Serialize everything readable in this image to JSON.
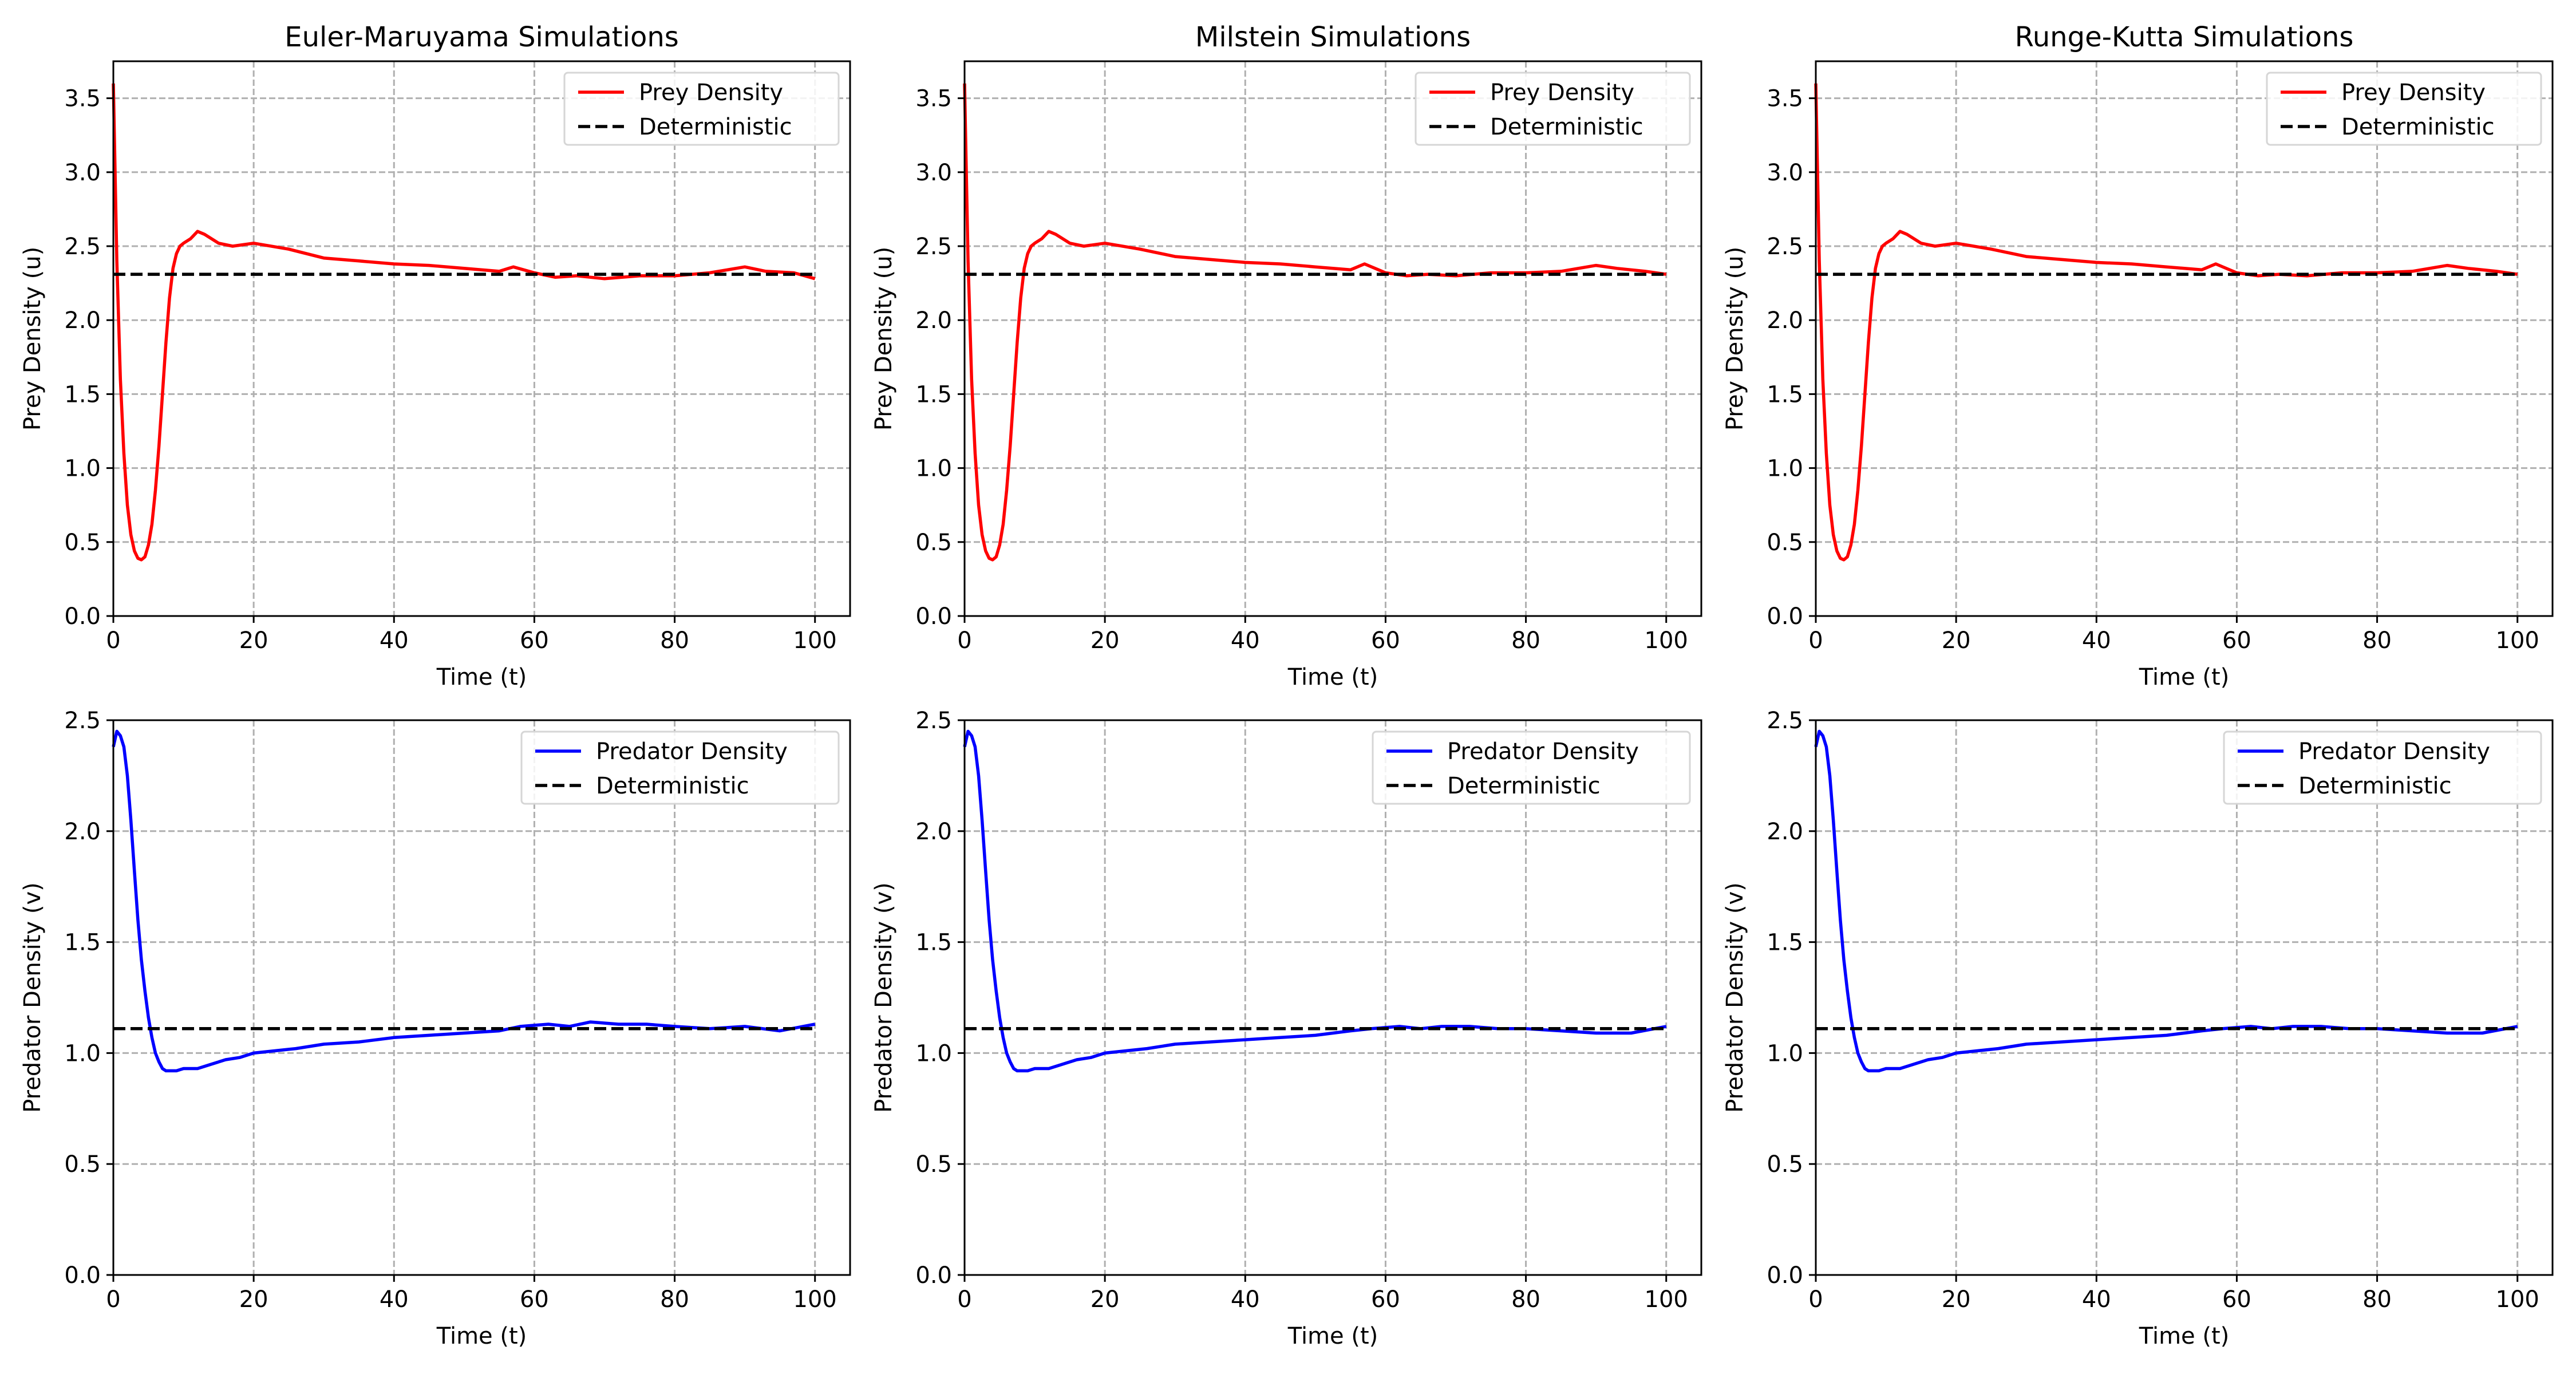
{
  "chart_data": [
    {
      "type": "line",
      "title": "Euler-Maruyama Simulations",
      "xlabel": "Time (t)",
      "ylabel": "Prey Density (u)",
      "xlim": [
        0,
        105
      ],
      "ylim": [
        0,
        3.75
      ],
      "xticks": [
        0,
        20,
        40,
        60,
        80,
        100
      ],
      "yticks": [
        0.0,
        0.5,
        1.0,
        1.5,
        2.0,
        2.5,
        3.0,
        3.5
      ],
      "xtick_labels": [
        "0",
        "20",
        "40",
        "60",
        "80",
        "100"
      ],
      "ytick_labels": [
        "0.0",
        "0.5",
        "1.0",
        "1.5",
        "2.0",
        "2.5",
        "3.0",
        "3.5"
      ],
      "grid": true,
      "legend": "upper-right",
      "series": [
        {
          "name": "Prey Density",
          "color": "#ff0000",
          "style": "solid",
          "x": [
            0,
            0.5,
            1,
            1.5,
            2,
            2.5,
            3,
            3.5,
            4,
            4.5,
            5,
            5.5,
            6,
            6.5,
            7,
            7.5,
            8,
            8.5,
            9,
            9.5,
            10,
            11,
            12,
            13,
            14,
            15,
            17,
            20,
            25,
            30,
            35,
            40,
            45,
            50,
            55,
            57,
            60,
            63,
            66,
            70,
            75,
            80,
            85,
            90,
            93,
            97,
            100
          ],
          "y": [
            3.6,
            2.4,
            1.6,
            1.1,
            0.75,
            0.55,
            0.44,
            0.39,
            0.38,
            0.4,
            0.48,
            0.62,
            0.85,
            1.15,
            1.5,
            1.85,
            2.15,
            2.35,
            2.45,
            2.5,
            2.52,
            2.55,
            2.6,
            2.58,
            2.55,
            2.52,
            2.5,
            2.52,
            2.48,
            2.42,
            2.4,
            2.38,
            2.37,
            2.35,
            2.33,
            2.36,
            2.32,
            2.29,
            2.3,
            2.28,
            2.3,
            2.3,
            2.32,
            2.36,
            2.33,
            2.32,
            2.28
          ]
        },
        {
          "name": "Deterministic",
          "color": "#000000",
          "style": "dashed",
          "x": [
            0,
            100
          ],
          "y": [
            2.31,
            2.31
          ]
        }
      ]
    },
    {
      "type": "line",
      "title": "Milstein Simulations",
      "xlabel": "Time (t)",
      "ylabel": "Prey Density (u)",
      "xlim": [
        0,
        105
      ],
      "ylim": [
        0,
        3.75
      ],
      "xticks": [
        0,
        20,
        40,
        60,
        80,
        100
      ],
      "yticks": [
        0.0,
        0.5,
        1.0,
        1.5,
        2.0,
        2.5,
        3.0,
        3.5
      ],
      "xtick_labels": [
        "0",
        "20",
        "40",
        "60",
        "80",
        "100"
      ],
      "ytick_labels": [
        "0.0",
        "0.5",
        "1.0",
        "1.5",
        "2.0",
        "2.5",
        "3.0",
        "3.5"
      ],
      "grid": true,
      "legend": "upper-right",
      "series": [
        {
          "name": "Prey Density",
          "color": "#ff0000",
          "style": "solid",
          "x": [
            0,
            0.5,
            1,
            1.5,
            2,
            2.5,
            3,
            3.5,
            4,
            4.5,
            5,
            5.5,
            6,
            6.5,
            7,
            7.5,
            8,
            8.5,
            9,
            9.5,
            10,
            11,
            12,
            13,
            14,
            15,
            17,
            20,
            25,
            30,
            35,
            40,
            45,
            50,
            55,
            57,
            60,
            63,
            66,
            70,
            75,
            80,
            85,
            90,
            93,
            97,
            100
          ],
          "y": [
            3.6,
            2.4,
            1.6,
            1.1,
            0.75,
            0.55,
            0.44,
            0.39,
            0.38,
            0.4,
            0.48,
            0.62,
            0.85,
            1.15,
            1.5,
            1.85,
            2.15,
            2.35,
            2.45,
            2.5,
            2.52,
            2.55,
            2.6,
            2.58,
            2.55,
            2.52,
            2.5,
            2.52,
            2.48,
            2.43,
            2.41,
            2.39,
            2.38,
            2.36,
            2.34,
            2.38,
            2.32,
            2.3,
            2.31,
            2.3,
            2.32,
            2.32,
            2.33,
            2.37,
            2.35,
            2.33,
            2.31
          ]
        },
        {
          "name": "Deterministic",
          "color": "#000000",
          "style": "dashed",
          "x": [
            0,
            100
          ],
          "y": [
            2.31,
            2.31
          ]
        }
      ]
    },
    {
      "type": "line",
      "title": "Runge-Kutta Simulations",
      "xlabel": "Time (t)",
      "ylabel": "Prey Density (u)",
      "xlim": [
        0,
        105
      ],
      "ylim": [
        0,
        3.75
      ],
      "xticks": [
        0,
        20,
        40,
        60,
        80,
        100
      ],
      "yticks": [
        0.0,
        0.5,
        1.0,
        1.5,
        2.0,
        2.5,
        3.0,
        3.5
      ],
      "xtick_labels": [
        "0",
        "20",
        "40",
        "60",
        "80",
        "100"
      ],
      "ytick_labels": [
        "0.0",
        "0.5",
        "1.0",
        "1.5",
        "2.0",
        "2.5",
        "3.0",
        "3.5"
      ],
      "grid": true,
      "legend": "upper-right",
      "series": [
        {
          "name": "Prey Density",
          "color": "#ff0000",
          "style": "solid",
          "x": [
            0,
            0.5,
            1,
            1.5,
            2,
            2.5,
            3,
            3.5,
            4,
            4.5,
            5,
            5.5,
            6,
            6.5,
            7,
            7.5,
            8,
            8.5,
            9,
            9.5,
            10,
            11,
            12,
            13,
            14,
            15,
            17,
            20,
            25,
            30,
            35,
            40,
            45,
            50,
            55,
            57,
            60,
            63,
            66,
            70,
            75,
            80,
            85,
            90,
            93,
            97,
            100
          ],
          "y": [
            3.6,
            2.4,
            1.6,
            1.1,
            0.75,
            0.55,
            0.44,
            0.39,
            0.38,
            0.4,
            0.48,
            0.62,
            0.85,
            1.15,
            1.5,
            1.85,
            2.15,
            2.35,
            2.45,
            2.5,
            2.52,
            2.55,
            2.6,
            2.58,
            2.55,
            2.52,
            2.5,
            2.52,
            2.48,
            2.43,
            2.41,
            2.39,
            2.38,
            2.36,
            2.34,
            2.38,
            2.32,
            2.3,
            2.31,
            2.3,
            2.32,
            2.32,
            2.33,
            2.37,
            2.35,
            2.33,
            2.31
          ]
        },
        {
          "name": "Deterministic",
          "color": "#000000",
          "style": "dashed",
          "x": [
            0,
            100
          ],
          "y": [
            2.31,
            2.31
          ]
        }
      ]
    },
    {
      "type": "line",
      "title": "",
      "xlabel": "Time (t)",
      "ylabel": "Predator Density (v)",
      "xlim": [
        0,
        105
      ],
      "ylim": [
        0,
        2.5
      ],
      "xticks": [
        0,
        20,
        40,
        60,
        80,
        100
      ],
      "yticks": [
        0.0,
        0.5,
        1.0,
        1.5,
        2.0,
        2.5
      ],
      "xtick_labels": [
        "0",
        "20",
        "40",
        "60",
        "80",
        "100"
      ],
      "ytick_labels": [
        "0.0",
        "0.5",
        "1.0",
        "1.5",
        "2.0",
        "2.5"
      ],
      "grid": true,
      "legend": "upper-right",
      "series": [
        {
          "name": "Predator Density",
          "color": "#0000ff",
          "style": "solid",
          "x": [
            0,
            0.5,
            1,
            1.5,
            2,
            2.5,
            3,
            3.5,
            4,
            4.5,
            5,
            5.5,
            6,
            6.5,
            7,
            7.5,
            8,
            8.5,
            9,
            10,
            12,
            14,
            16,
            18,
            20,
            23,
            26,
            30,
            35,
            40,
            45,
            50,
            55,
            58,
            62,
            65,
            68,
            72,
            76,
            80,
            85,
            90,
            95,
            100
          ],
          "y": [
            2.38,
            2.45,
            2.43,
            2.38,
            2.25,
            2.05,
            1.82,
            1.6,
            1.42,
            1.28,
            1.16,
            1.07,
            1.0,
            0.96,
            0.93,
            0.92,
            0.92,
            0.92,
            0.92,
            0.93,
            0.93,
            0.95,
            0.97,
            0.98,
            1.0,
            1.01,
            1.02,
            1.04,
            1.05,
            1.07,
            1.08,
            1.09,
            1.1,
            1.12,
            1.13,
            1.12,
            1.14,
            1.13,
            1.13,
            1.12,
            1.11,
            1.12,
            1.1,
            1.13
          ]
        },
        {
          "name": "Deterministic",
          "color": "#000000",
          "style": "dashed",
          "x": [
            0,
            100
          ],
          "y": [
            1.11,
            1.11
          ]
        }
      ]
    },
    {
      "type": "line",
      "title": "",
      "xlabel": "Time (t)",
      "ylabel": "Predator Density (v)",
      "xlim": [
        0,
        105
      ],
      "ylim": [
        0,
        2.5
      ],
      "xticks": [
        0,
        20,
        40,
        60,
        80,
        100
      ],
      "yticks": [
        0.0,
        0.5,
        1.0,
        1.5,
        2.0,
        2.5
      ],
      "xtick_labels": [
        "0",
        "20",
        "40",
        "60",
        "80",
        "100"
      ],
      "ytick_labels": [
        "0.0",
        "0.5",
        "1.0",
        "1.5",
        "2.0",
        "2.5"
      ],
      "grid": true,
      "legend": "upper-right",
      "series": [
        {
          "name": "Predator Density",
          "color": "#0000ff",
          "style": "solid",
          "x": [
            0,
            0.5,
            1,
            1.5,
            2,
            2.5,
            3,
            3.5,
            4,
            4.5,
            5,
            5.5,
            6,
            6.5,
            7,
            7.5,
            8,
            8.5,
            9,
            10,
            12,
            14,
            16,
            18,
            20,
            23,
            26,
            30,
            35,
            40,
            45,
            50,
            55,
            58,
            62,
            65,
            68,
            72,
            76,
            80,
            85,
            90,
            95,
            100
          ],
          "y": [
            2.38,
            2.45,
            2.43,
            2.38,
            2.25,
            2.05,
            1.82,
            1.6,
            1.42,
            1.28,
            1.16,
            1.07,
            1.0,
            0.96,
            0.93,
            0.92,
            0.92,
            0.92,
            0.92,
            0.93,
            0.93,
            0.95,
            0.97,
            0.98,
            1.0,
            1.01,
            1.02,
            1.04,
            1.05,
            1.06,
            1.07,
            1.08,
            1.1,
            1.11,
            1.12,
            1.11,
            1.12,
            1.12,
            1.11,
            1.11,
            1.1,
            1.09,
            1.09,
            1.12
          ]
        },
        {
          "name": "Deterministic",
          "color": "#000000",
          "style": "dashed",
          "x": [
            0,
            100
          ],
          "y": [
            1.11,
            1.11
          ]
        }
      ]
    },
    {
      "type": "line",
      "title": "",
      "xlabel": "Time (t)",
      "ylabel": "Predator Density (v)",
      "xlim": [
        0,
        105
      ],
      "ylim": [
        0,
        2.5
      ],
      "xticks": [
        0,
        20,
        40,
        60,
        80,
        100
      ],
      "yticks": [
        0.0,
        0.5,
        1.0,
        1.5,
        2.0,
        2.5
      ],
      "xtick_labels": [
        "0",
        "20",
        "40",
        "60",
        "80",
        "100"
      ],
      "ytick_labels": [
        "0.0",
        "0.5",
        "1.0",
        "1.5",
        "2.0",
        "2.5"
      ],
      "grid": true,
      "legend": "upper-right",
      "series": [
        {
          "name": "Predator Density",
          "color": "#0000ff",
          "style": "solid",
          "x": [
            0,
            0.5,
            1,
            1.5,
            2,
            2.5,
            3,
            3.5,
            4,
            4.5,
            5,
            5.5,
            6,
            6.5,
            7,
            7.5,
            8,
            8.5,
            9,
            10,
            12,
            14,
            16,
            18,
            20,
            23,
            26,
            30,
            35,
            40,
            45,
            50,
            55,
            58,
            62,
            65,
            68,
            72,
            76,
            80,
            85,
            90,
            95,
            100
          ],
          "y": [
            2.38,
            2.45,
            2.43,
            2.38,
            2.25,
            2.05,
            1.82,
            1.6,
            1.42,
            1.28,
            1.16,
            1.07,
            1.0,
            0.96,
            0.93,
            0.92,
            0.92,
            0.92,
            0.92,
            0.93,
            0.93,
            0.95,
            0.97,
            0.98,
            1.0,
            1.01,
            1.02,
            1.04,
            1.05,
            1.06,
            1.07,
            1.08,
            1.1,
            1.11,
            1.12,
            1.11,
            1.12,
            1.12,
            1.11,
            1.11,
            1.1,
            1.09,
            1.09,
            1.12
          ]
        },
        {
          "name": "Deterministic",
          "color": "#000000",
          "style": "dashed",
          "x": [
            0,
            100
          ],
          "y": [
            1.11,
            1.11
          ]
        }
      ]
    }
  ]
}
